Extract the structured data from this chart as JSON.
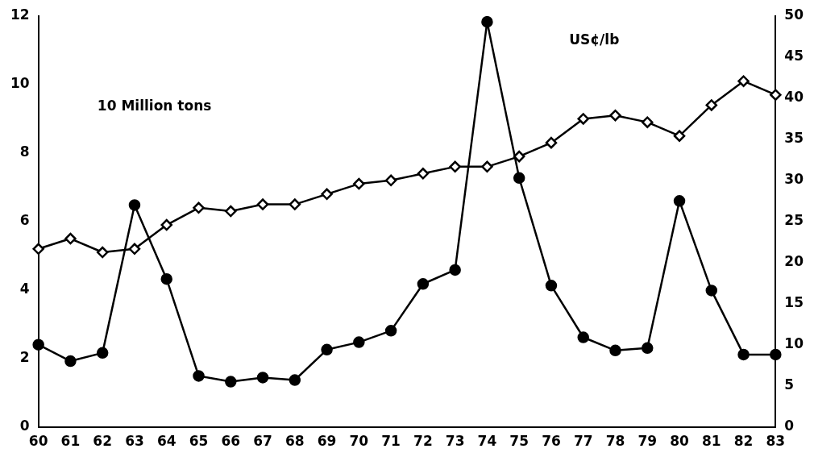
{
  "chart_data": {
    "type": "line",
    "categories": [
      "60",
      "61",
      "62",
      "63",
      "64",
      "65",
      "66",
      "67",
      "68",
      "69",
      "70",
      "71",
      "72",
      "73",
      "74",
      "75",
      "76",
      "77",
      "78",
      "79",
      "80",
      "81",
      "82",
      "83"
    ],
    "series": [
      {
        "color": "#000000",
        "marker": "diamond",
        "values": [
          5.2,
          5.5,
          5.1,
          5.2,
          5.9,
          6.4,
          6.3,
          6.5,
          6.5,
          6.8,
          7.1,
          7.2,
          7.4,
          7.6,
          7.6,
          7.9,
          8.3,
          9.0,
          9.1,
          8.9,
          8.5,
          9.4,
          10.1,
          9.7
        ]
      },
      {
        "color": "#000000",
        "marker": "circle",
        "axis": "y2",
        "values": [
          10,
          8,
          9,
          27,
          18,
          6.2,
          5.5,
          6,
          5.7,
          9.4,
          10.3,
          11.7,
          17.4,
          19.1,
          49.3,
          30.3,
          17.2,
          10.9,
          9.3,
          9.6,
          27.5,
          16.6,
          8.8,
          8.8
        ]
      }
    ],
    "ylabel": "10 Million tons",
    "y2label": "US¢/lb",
    "ylim": [
      0,
      12
    ],
    "yticks": [
      0,
      2,
      4,
      6,
      8,
      10,
      12
    ],
    "y2lim": [
      0,
      50
    ],
    "y2ticks": [
      0,
      5,
      10,
      15,
      20,
      25,
      30,
      35,
      40,
      45,
      50
    ],
    "grid": false,
    "legend": false,
    "line_style": "solid"
  }
}
